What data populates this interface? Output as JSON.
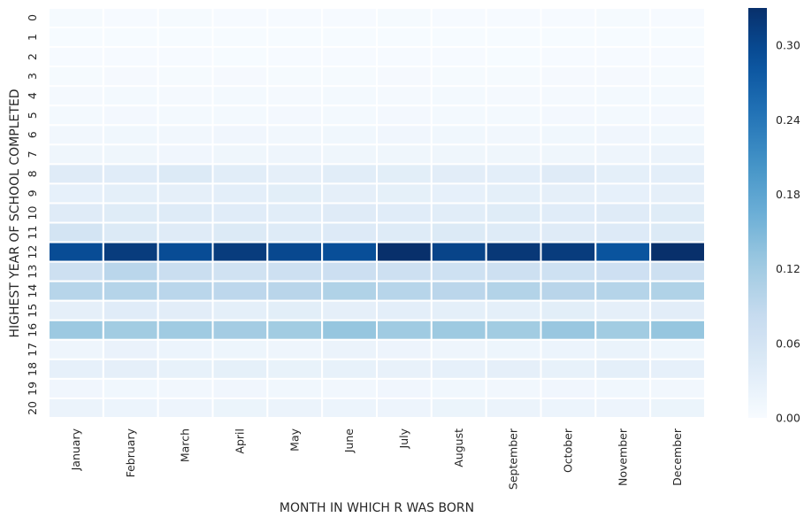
{
  "chart_data": {
    "type": "heatmap",
    "title": "",
    "xlabel": "MONTH IN WHICH R WAS BORN",
    "ylabel": "HIGHEST YEAR OF SCHOOL COMPLETED",
    "x_categories": [
      "January",
      "February",
      "March",
      "April",
      "May",
      "June",
      "July",
      "August",
      "September",
      "October",
      "November",
      "December"
    ],
    "y_categories": [
      "0",
      "1",
      "2",
      "3",
      "4",
      "5",
      "6",
      "7",
      "8",
      "9",
      "10",
      "11",
      "12",
      "13",
      "14",
      "15",
      "16",
      "17",
      "18",
      "19",
      "20"
    ],
    "values": [
      [
        0.003,
        0.002,
        0.003,
        0.002,
        0.002,
        0.002,
        0.003,
        0.002,
        0.002,
        0.002,
        0.003,
        0.002
      ],
      [
        0.001,
        0.001,
        0.001,
        0.001,
        0.001,
        0.001,
        0.001,
        0.001,
        0.001,
        0.001,
        0.001,
        0.001
      ],
      [
        0.002,
        0.002,
        0.002,
        0.001,
        0.002,
        0.002,
        0.002,
        0.002,
        0.001,
        0.002,
        0.002,
        0.002
      ],
      [
        0.003,
        0.004,
        0.003,
        0.004,
        0.003,
        0.003,
        0.004,
        0.003,
        0.003,
        0.004,
        0.004,
        0.003
      ],
      [
        0.005,
        0.006,
        0.005,
        0.006,
        0.005,
        0.006,
        0.005,
        0.006,
        0.005,
        0.005,
        0.006,
        0.006
      ],
      [
        0.006,
        0.007,
        0.006,
        0.006,
        0.007,
        0.006,
        0.007,
        0.006,
        0.006,
        0.007,
        0.006,
        0.007
      ],
      [
        0.01,
        0.011,
        0.01,
        0.012,
        0.01,
        0.011,
        0.012,
        0.011,
        0.01,
        0.011,
        0.012,
        0.011
      ],
      [
        0.014,
        0.013,
        0.012,
        0.014,
        0.015,
        0.013,
        0.014,
        0.013,
        0.014,
        0.013,
        0.015,
        0.02
      ],
      [
        0.04,
        0.038,
        0.045,
        0.036,
        0.03,
        0.036,
        0.034,
        0.035,
        0.033,
        0.04,
        0.032,
        0.033
      ],
      [
        0.028,
        0.032,
        0.03,
        0.033,
        0.034,
        0.03,
        0.029,
        0.028,
        0.031,
        0.03,
        0.028,
        0.03
      ],
      [
        0.04,
        0.039,
        0.041,
        0.038,
        0.037,
        0.04,
        0.038,
        0.036,
        0.039,
        0.038,
        0.04,
        0.039
      ],
      [
        0.06,
        0.045,
        0.04,
        0.044,
        0.042,
        0.043,
        0.041,
        0.045,
        0.042,
        0.04,
        0.043,
        0.044
      ],
      [
        0.295,
        0.315,
        0.295,
        0.315,
        0.3,
        0.292,
        0.33,
        0.305,
        0.32,
        0.315,
        0.285,
        0.33
      ],
      [
        0.07,
        0.095,
        0.075,
        0.065,
        0.07,
        0.072,
        0.07,
        0.068,
        0.07,
        0.068,
        0.069,
        0.07
      ],
      [
        0.098,
        0.1,
        0.095,
        0.092,
        0.096,
        0.105,
        0.098,
        0.094,
        0.102,
        0.096,
        0.1,
        0.105
      ],
      [
        0.03,
        0.038,
        0.035,
        0.032,
        0.034,
        0.03,
        0.033,
        0.032,
        0.031,
        0.034,
        0.03,
        0.035
      ],
      [
        0.125,
        0.12,
        0.122,
        0.118,
        0.12,
        0.13,
        0.122,
        0.124,
        0.12,
        0.128,
        0.12,
        0.13
      ],
      [
        0.015,
        0.022,
        0.018,
        0.016,
        0.015,
        0.02,
        0.017,
        0.015,
        0.016,
        0.018,
        0.021,
        0.016
      ],
      [
        0.028,
        0.03,
        0.026,
        0.029,
        0.024,
        0.027,
        0.025,
        0.028,
        0.03,
        0.027,
        0.032,
        0.028
      ],
      [
        0.012,
        0.011,
        0.01,
        0.012,
        0.011,
        0.01,
        0.012,
        0.011,
        0.01,
        0.012,
        0.011,
        0.01
      ],
      [
        0.02,
        0.018,
        0.017,
        0.019,
        0.02,
        0.018,
        0.017,
        0.019,
        0.02,
        0.018,
        0.017,
        0.019
      ]
    ],
    "colormap": "Blues",
    "vmin": 0,
    "vmax": 0.33,
    "colorbar_ticks": [
      "0.00",
      "0.06",
      "0.12",
      "0.18",
      "0.24",
      "0.30"
    ],
    "colorbar_tick_values": [
      0,
      0.06,
      0.12,
      0.18,
      0.24,
      0.3
    ],
    "cell_separator_color": "#ffffff"
  }
}
